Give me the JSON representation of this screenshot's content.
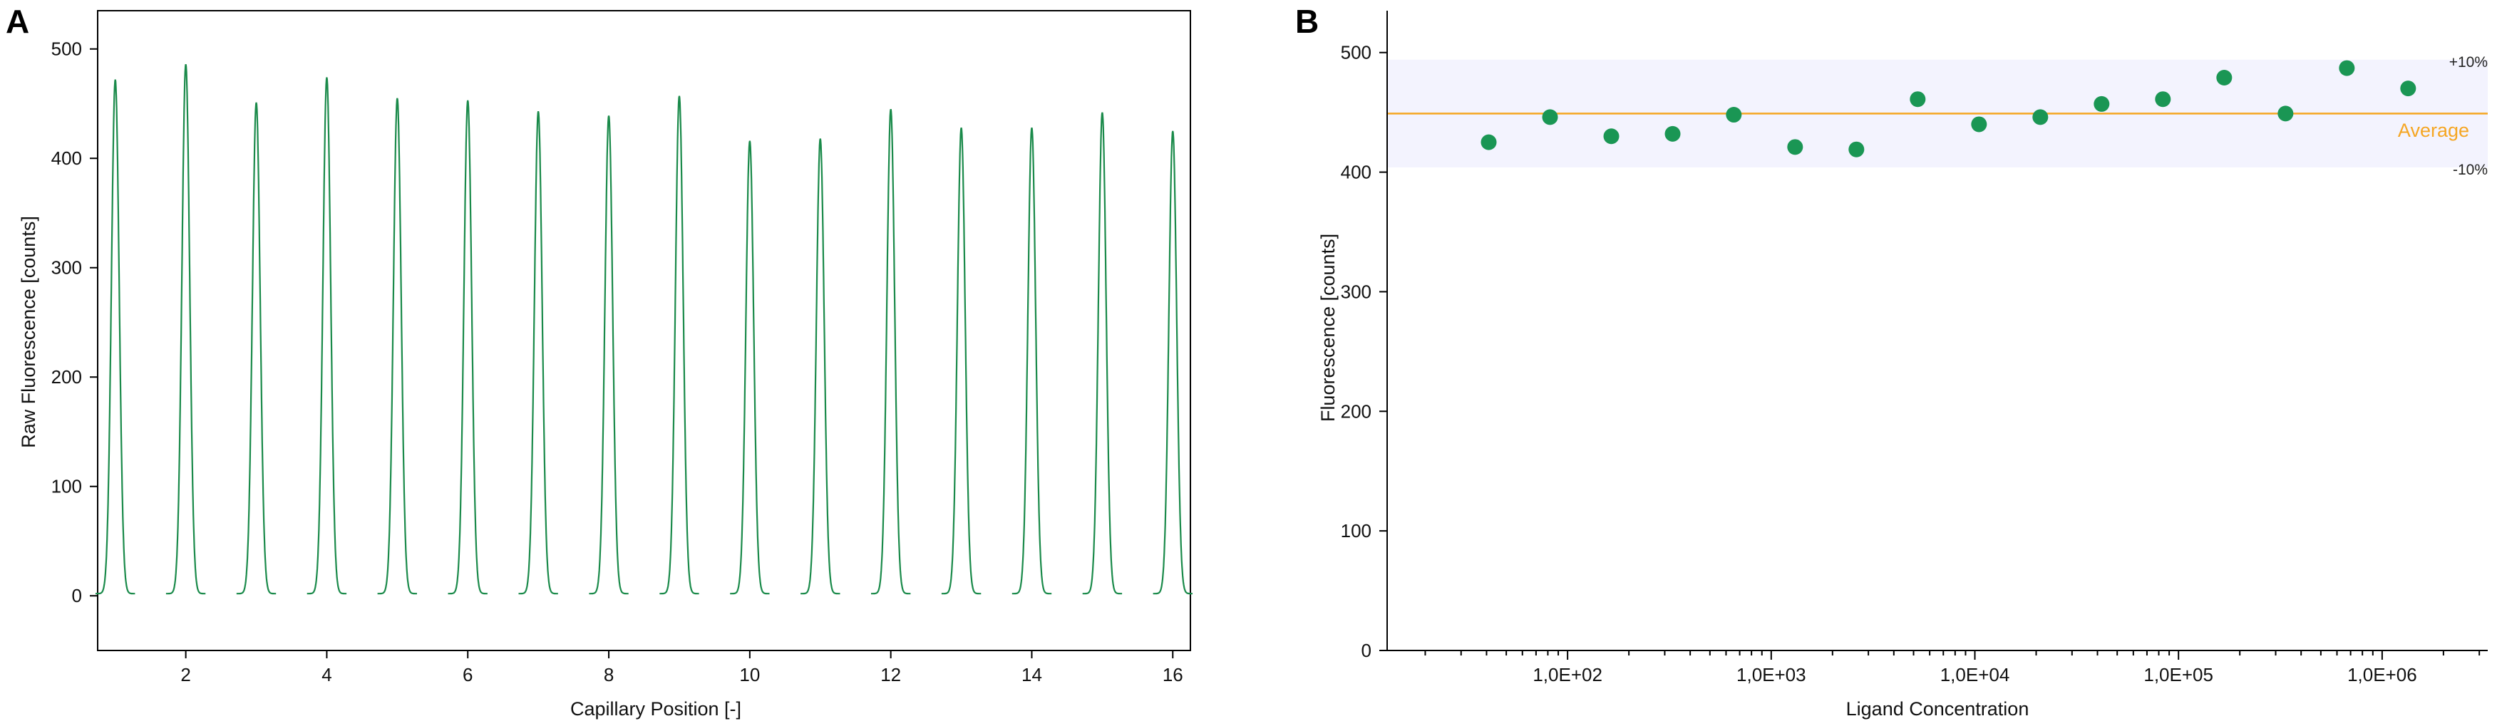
{
  "chart_data": [
    {
      "panel": "A",
      "type": "line",
      "xlabel": "Capillary Position [-]",
      "ylabel": "Raw Fluorescence [counts]",
      "xlim": [
        0.75,
        16.25
      ],
      "ylim": [
        -50,
        535
      ],
      "xticks": [
        2,
        4,
        6,
        8,
        10,
        12,
        14,
        16
      ],
      "yticks": [
        0,
        100,
        200,
        300,
        400,
        500
      ],
      "grid": false,
      "color": "#1a8a4a",
      "series": [
        {
          "x": [
            1,
            2,
            3,
            4,
            5,
            6,
            7,
            8,
            9,
            10,
            11,
            12,
            13,
            14,
            15,
            16
          ],
          "values": [
            472,
            486,
            451,
            474,
            455,
            453,
            443,
            439,
            457,
            416,
            418,
            445,
            428,
            428,
            442,
            425
          ]
        }
      ]
    },
    {
      "panel": "B",
      "type": "scatter",
      "xlabel": "Ligand Concentration",
      "ylabel": "Fluorescence [counts]",
      "xscale": "log",
      "xlim": [
        13,
        3300000
      ],
      "ylim": [
        0,
        535
      ],
      "xticks": [
        100,
        1000,
        10000,
        100000,
        1000000
      ],
      "xticklabels": [
        "1,0E+02",
        "1,0E+03",
        "1,0E+04",
        "1,0E+05",
        "1,0E+06"
      ],
      "yticks": [
        0,
        100,
        200,
        300,
        400,
        500
      ],
      "grid": false,
      "point_color": "#1a9654",
      "average": 449,
      "average_label": "Average",
      "average_color": "#f5a623",
      "band": [
        404,
        494
      ],
      "band_color": "#f3f3fe",
      "band_upper_label": "+10%",
      "band_lower_label": "-10%",
      "series": [
        {
          "x": [
            41,
            82,
            164,
            328,
            655,
            1310,
            2620,
            5240,
            10480,
            20960,
            41920,
            83840,
            167700,
            335400,
            670800,
            1341600
          ],
          "values": [
            425,
            446,
            430,
            432,
            448,
            421,
            419,
            461,
            440,
            446,
            457,
            461,
            479,
            449,
            487,
            470
          ]
        }
      ]
    }
  ]
}
